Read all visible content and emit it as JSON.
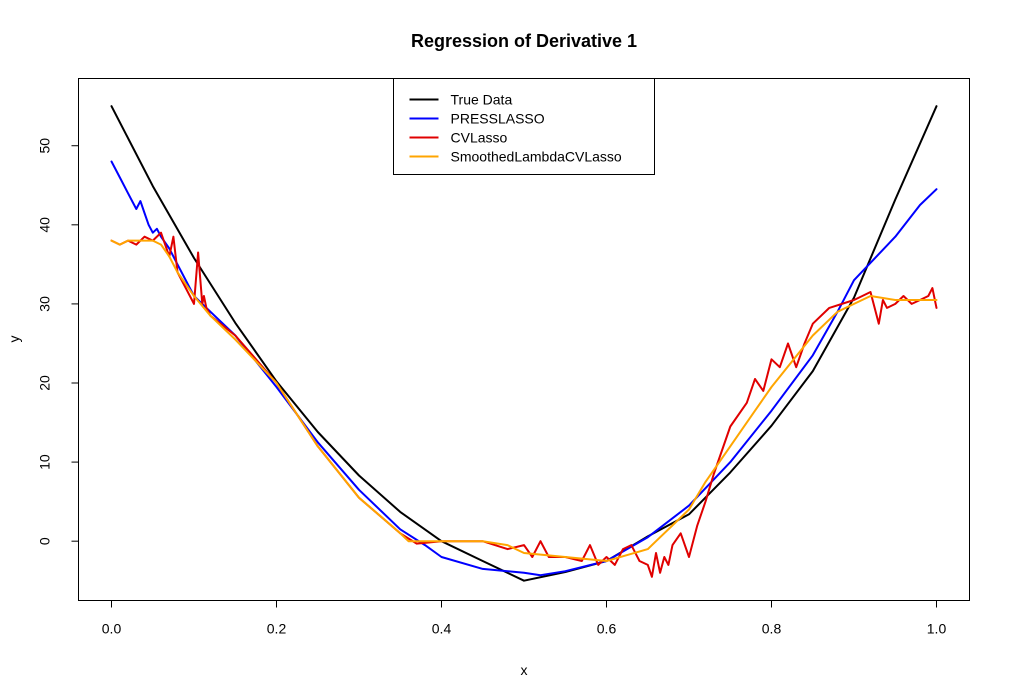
{
  "chart_data": {
    "type": "line",
    "title": "Regression of Derivative  1",
    "xlabel": "x",
    "ylabel": "y",
    "xlim": [
      -0.04,
      1.04
    ],
    "ylim": [
      -7.5,
      58.5
    ],
    "xticks": [
      0.0,
      0.2,
      0.4,
      0.6,
      0.8,
      1.0
    ],
    "xtick_labels": [
      "0.0",
      "0.2",
      "0.4",
      "0.6",
      "0.8",
      "1.0"
    ],
    "yticks": [
      0,
      10,
      20,
      30,
      40,
      50
    ],
    "ytick_labels": [
      "0",
      "10",
      "20",
      "30",
      "40",
      "50"
    ],
    "grid": false,
    "legend_position": "top-center",
    "series": [
      {
        "name": "True Data",
        "color": "#000000",
        "x": [
          0.0,
          0.05,
          0.1,
          0.15,
          0.2,
          0.25,
          0.3,
          0.35,
          0.4,
          0.45,
          0.5,
          0.55,
          0.6,
          0.65,
          0.7,
          0.75,
          0.8,
          0.85,
          0.9,
          0.95,
          1.0
        ],
        "y": [
          55,
          44.9,
          35.8,
          27.6,
          20.2,
          13.8,
          8.3,
          3.7,
          0.0,
          -2.5,
          -5.0,
          -3.9,
          -2.5,
          0.6,
          3.4,
          8.7,
          14.6,
          21.5,
          30.8,
          43.2,
          55
        ]
      },
      {
        "name": "PRESSLASSO",
        "color": "#0000ff",
        "x": [
          0.0,
          0.01,
          0.02,
          0.03,
          0.035,
          0.04,
          0.045,
          0.05,
          0.055,
          0.06,
          0.07,
          0.08,
          0.1,
          0.12,
          0.15,
          0.2,
          0.25,
          0.3,
          0.35,
          0.38,
          0.4,
          0.45,
          0.5,
          0.52,
          0.55,
          0.6,
          0.65,
          0.7,
          0.75,
          0.8,
          0.85,
          0.88,
          0.9,
          0.95,
          0.98,
          1.0
        ],
        "y": [
          48,
          46,
          44,
          42,
          43,
          41.5,
          40,
          39,
          39.5,
          38.5,
          37,
          35,
          31,
          29,
          26,
          19.5,
          12.5,
          6.5,
          1.5,
          -0.5,
          -2,
          -3.5,
          -4,
          -4.3,
          -3.8,
          -2.5,
          0.5,
          4.5,
          10,
          16.5,
          23.5,
          29,
          33,
          38.5,
          42.5,
          44.5
        ]
      },
      {
        "name": "CVLasso",
        "color": "#e00000",
        "x": [
          0.0,
          0.01,
          0.02,
          0.03,
          0.04,
          0.05,
          0.06,
          0.07,
          0.075,
          0.08,
          0.09,
          0.1,
          0.105,
          0.11,
          0.112,
          0.115,
          0.12,
          0.15,
          0.2,
          0.25,
          0.3,
          0.35,
          0.37,
          0.4,
          0.45,
          0.48,
          0.5,
          0.51,
          0.52,
          0.53,
          0.55,
          0.57,
          0.58,
          0.59,
          0.6,
          0.61,
          0.62,
          0.63,
          0.64,
          0.65,
          0.655,
          0.66,
          0.665,
          0.67,
          0.675,
          0.68,
          0.69,
          0.7,
          0.71,
          0.72,
          0.73,
          0.75,
          0.77,
          0.78,
          0.79,
          0.8,
          0.81,
          0.82,
          0.83,
          0.84,
          0.85,
          0.87,
          0.9,
          0.91,
          0.92,
          0.93,
          0.935,
          0.94,
          0.95,
          0.96,
          0.97,
          0.98,
          0.99,
          0.995,
          1.0
        ],
        "y": [
          38,
          37.5,
          38,
          37.5,
          38.5,
          38,
          39,
          36,
          38.5,
          34,
          32,
          30,
          36.5,
          30,
          31,
          29.5,
          28.5,
          26,
          20,
          12,
          5.5,
          1,
          -0.3,
          0,
          0,
          -1,
          -0.5,
          -2,
          0,
          -2,
          -2,
          -2.5,
          -0.5,
          -3,
          -2,
          -3,
          -1,
          -0.5,
          -2.5,
          -3,
          -4.5,
          -1.5,
          -4,
          -2,
          -3,
          -0.5,
          1,
          -2,
          2,
          5,
          8.5,
          14.5,
          17.5,
          20.5,
          19,
          23,
          22,
          25,
          22,
          25,
          27.5,
          29.5,
          30.5,
          31,
          31.5,
          27.5,
          30.5,
          29.5,
          30,
          31,
          30,
          30.5,
          31,
          32,
          29.5
        ]
      },
      {
        "name": "SmoothedLambdaCVLasso",
        "color": "#ffa500",
        "x": [
          0.0,
          0.01,
          0.02,
          0.03,
          0.04,
          0.05,
          0.06,
          0.07,
          0.08,
          0.1,
          0.12,
          0.15,
          0.2,
          0.25,
          0.3,
          0.35,
          0.36,
          0.4,
          0.45,
          0.48,
          0.5,
          0.55,
          0.6,
          0.65,
          0.66,
          0.68,
          0.7,
          0.72,
          0.75,
          0.78,
          0.8,
          0.85,
          0.88,
          0.9,
          0.92,
          0.95,
          1.0
        ],
        "y": [
          38,
          37.5,
          38,
          38,
          38,
          38,
          37.5,
          36,
          34,
          31,
          28.5,
          25.5,
          20,
          12,
          5.5,
          1,
          0,
          0,
          0,
          -0.5,
          -1.5,
          -2,
          -2.5,
          -1,
          0,
          2,
          4,
          7.5,
          12,
          16.5,
          19.5,
          26,
          29,
          30,
          31,
          30.5,
          30.5
        ]
      }
    ]
  }
}
